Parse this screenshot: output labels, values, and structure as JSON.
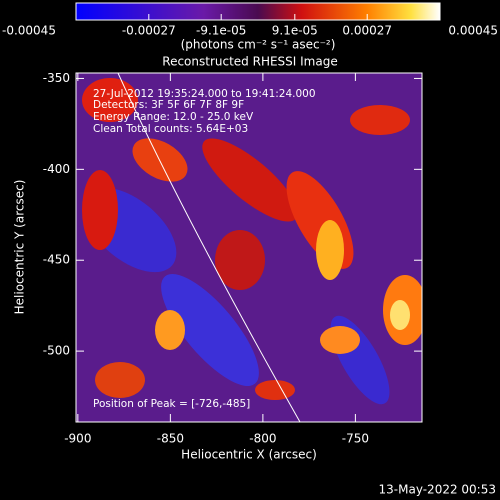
{
  "chart_data": {
    "type": "image",
    "title": "Reconstructed RHESSI Image",
    "xlabel": "Heliocentric X (arcsec)",
    "ylabel": "Heliocentric Y (arcsec)",
    "xlim": [
      -901,
      -714
    ],
    "ylim": [
      -539,
      -347
    ],
    "xticks": [
      -900,
      -850,
      -800,
      -750
    ],
    "yticks": [
      -350,
      -400,
      -450,
      -500
    ],
    "colorbar": {
      "label": "(photons cm⁻² s⁻¹ asec⁻²)",
      "lim": [
        -0.00045,
        0.00045
      ],
      "ticks": [
        -0.00045,
        -0.00027,
        {
          "value": -9.1e-05,
          "label": "-9.1e-05"
        },
        {
          "value": 9.1e-05,
          "label": "9.1e-05"
        },
        0.00027,
        0.00045
      ]
    },
    "annotations": [
      "27-Jul-2012 19:35:24.000 to 19:41:24.000",
      "Detectors: 3F 5F 6F 7F 8F 9F",
      "Energy Range: 12.0 - 25.0 keV",
      "Clean    Total counts: 5.64E+03"
    ],
    "peak_label": "Position of Peak = [-726,-485]",
    "timestamp": "13-May-2022 00:53"
  }
}
